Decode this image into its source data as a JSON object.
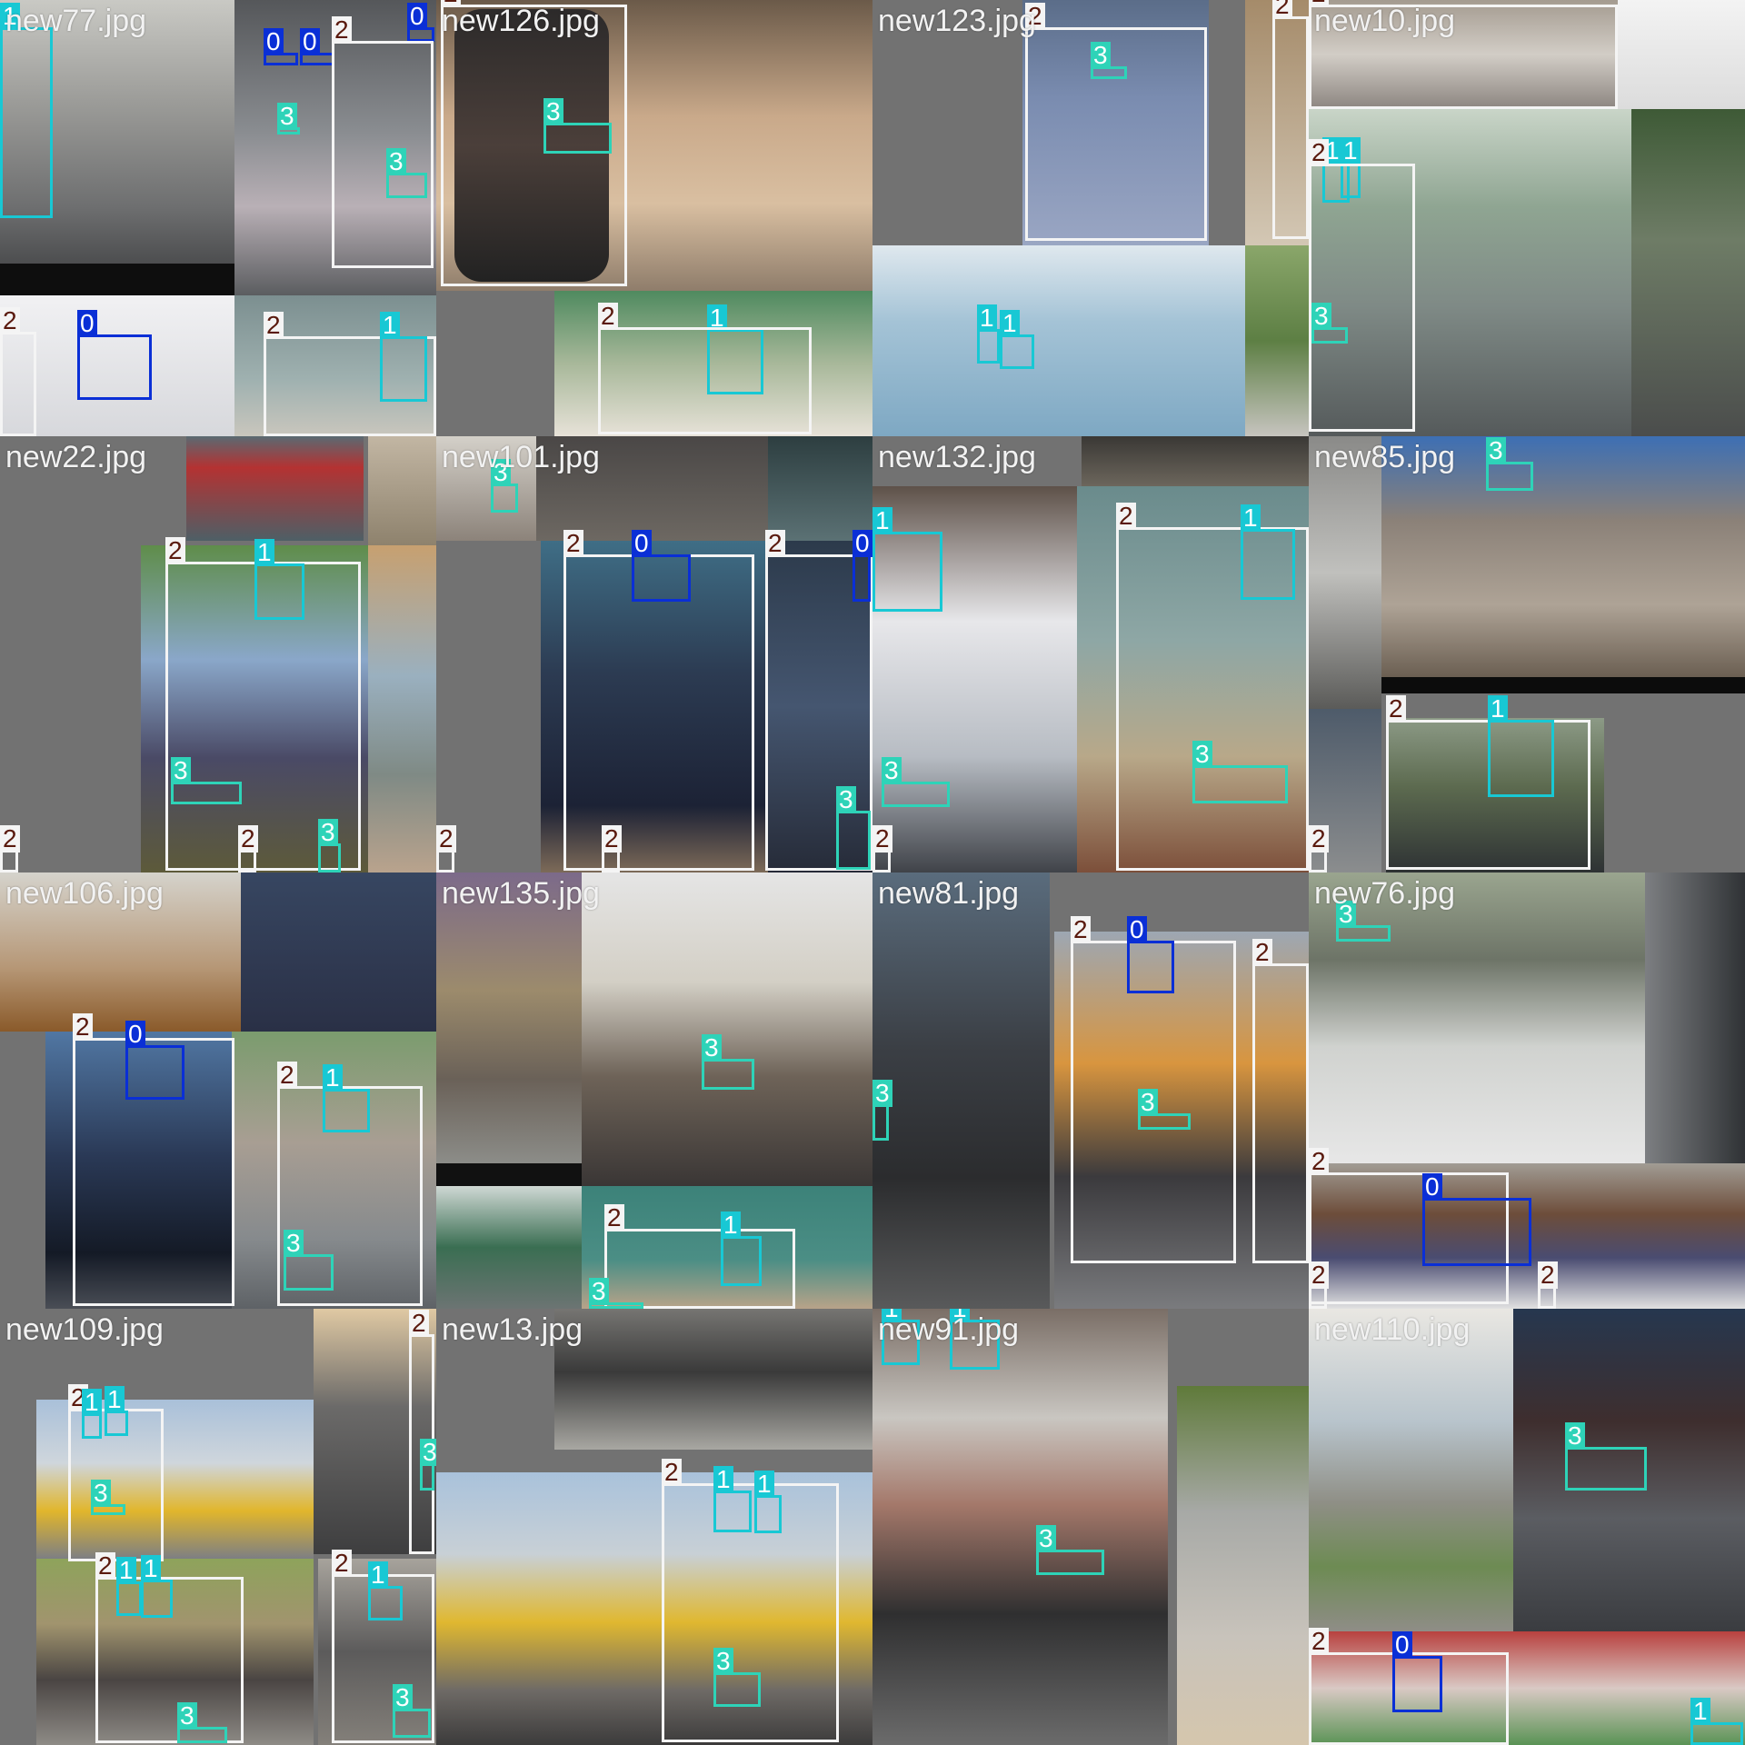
{
  "mosaic": {
    "class_colors": {
      "0": "#0a2fd6",
      "1": "#18c8d4",
      "2": "#f4f4f4",
      "3": "#2ed3b8"
    },
    "tiles": [
      {
        "filename": "new77.jpg",
        "boxes": [
          {
            "cls": "1"
          },
          {
            "cls": "0"
          },
          {
            "cls": "0"
          },
          {
            "cls": "0"
          },
          {
            "cls": "2"
          },
          {
            "cls": "3"
          },
          {
            "cls": "3"
          },
          {
            "cls": "0"
          },
          {
            "cls": "2"
          },
          {
            "cls": "1"
          },
          {
            "cls": "2"
          }
        ]
      },
      {
        "filename": "new126.jpg",
        "boxes": [
          {
            "cls": "2"
          },
          {
            "cls": "3"
          },
          {
            "cls": "1"
          },
          {
            "cls": "2"
          }
        ]
      },
      {
        "filename": "new123.jpg",
        "boxes": [
          {
            "cls": "2"
          },
          {
            "cls": "3"
          },
          {
            "cls": "1"
          },
          {
            "cls": "1"
          },
          {
            "cls": "2"
          }
        ]
      },
      {
        "filename": "new10.jpg",
        "boxes": [
          {
            "cls": "2"
          },
          {
            "cls": "1"
          },
          {
            "cls": "1"
          },
          {
            "cls": "3"
          },
          {
            "cls": "2"
          }
        ]
      },
      {
        "filename": "new22.jpg",
        "boxes": [
          {
            "cls": "2"
          },
          {
            "cls": "1"
          },
          {
            "cls": "3"
          },
          {
            "cls": "3"
          },
          {
            "cls": "2"
          },
          {
            "cls": "2"
          }
        ]
      },
      {
        "filename": "new101.jpg",
        "boxes": [
          {
            "cls": "3"
          },
          {
            "cls": "2"
          },
          {
            "cls": "0"
          },
          {
            "cls": "2"
          },
          {
            "cls": "0"
          },
          {
            "cls": "3"
          },
          {
            "cls": "2"
          },
          {
            "cls": "2"
          }
        ]
      },
      {
        "filename": "new132.jpg",
        "boxes": [
          {
            "cls": "1"
          },
          {
            "cls": "2"
          },
          {
            "cls": "1"
          },
          {
            "cls": "3"
          },
          {
            "cls": "3"
          },
          {
            "cls": "2"
          }
        ]
      },
      {
        "filename": "new85.jpg",
        "boxes": [
          {
            "cls": "3"
          },
          {
            "cls": "2"
          },
          {
            "cls": "1"
          },
          {
            "cls": "2"
          }
        ]
      },
      {
        "filename": "new106.jpg",
        "boxes": [
          {
            "cls": "2"
          },
          {
            "cls": "0"
          },
          {
            "cls": "2"
          },
          {
            "cls": "1"
          },
          {
            "cls": "3"
          }
        ]
      },
      {
        "filename": "new135.jpg",
        "boxes": [
          {
            "cls": "3"
          },
          {
            "cls": "2"
          },
          {
            "cls": "1"
          },
          {
            "cls": "3"
          }
        ]
      },
      {
        "filename": "new81.jpg",
        "boxes": [
          {
            "cls": "2"
          },
          {
            "cls": "0"
          },
          {
            "cls": "2"
          },
          {
            "cls": "3"
          },
          {
            "cls": "3"
          }
        ]
      },
      {
        "filename": "new76.jpg",
        "boxes": [
          {
            "cls": "3"
          },
          {
            "cls": "2"
          },
          {
            "cls": "0"
          },
          {
            "cls": "2"
          },
          {
            "cls": "2"
          }
        ]
      },
      {
        "filename": "new109.jpg",
        "boxes": [
          {
            "cls": "2"
          },
          {
            "cls": "1"
          },
          {
            "cls": "1"
          },
          {
            "cls": "3"
          },
          {
            "cls": "2"
          },
          {
            "cls": "1"
          },
          {
            "cls": "1"
          },
          {
            "cls": "3"
          },
          {
            "cls": "2"
          },
          {
            "cls": "3"
          },
          {
            "cls": "2"
          },
          {
            "cls": "1"
          },
          {
            "cls": "3"
          }
        ]
      },
      {
        "filename": "new13.jpg",
        "boxes": [
          {
            "cls": "2"
          },
          {
            "cls": "1"
          },
          {
            "cls": "1"
          },
          {
            "cls": "3"
          }
        ]
      },
      {
        "filename": "new91.jpg",
        "boxes": [
          {
            "cls": "1"
          },
          {
            "cls": "1"
          },
          {
            "cls": "3"
          }
        ]
      },
      {
        "filename": "new110.jpg",
        "boxes": [
          {
            "cls": "3"
          },
          {
            "cls": "2"
          },
          {
            "cls": "0"
          },
          {
            "cls": "1"
          }
        ]
      }
    ]
  }
}
